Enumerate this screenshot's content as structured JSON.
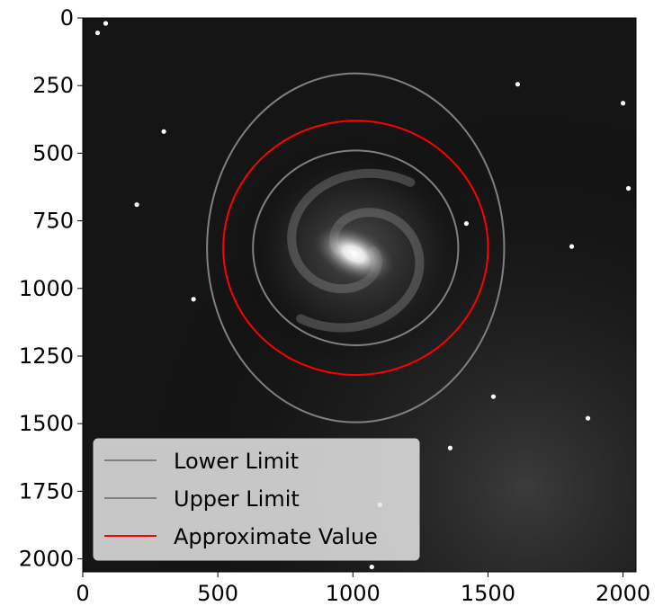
{
  "chart_data": {
    "type": "image",
    "title": "",
    "xlabel": "",
    "ylabel": "",
    "xlim": [
      0,
      2048
    ],
    "ylim": [
      2048,
      0
    ],
    "x_ticks": [
      0,
      500,
      1000,
      1500,
      2000
    ],
    "y_ticks": [
      0,
      250,
      500,
      750,
      1000,
      1250,
      1500,
      1750,
      2000
    ],
    "grid": false,
    "legend_position": "lower-left",
    "background_image": "grayscale-spiral-galaxy-starfield",
    "galaxy_center": {
      "x": 1010,
      "y": 860
    },
    "series": [
      {
        "name": "Lower Limit",
        "color": "#808080",
        "center": {
          "x": 1010,
          "y": 850
        },
        "rx": 380,
        "ry": 360
      },
      {
        "name": "Upper Limit",
        "color": "#808080",
        "center": {
          "x": 1010,
          "y": 850
        },
        "rx": 550,
        "ry": 645
      },
      {
        "name": "Approximate Value",
        "color": "#ff0000",
        "center": {
          "x": 1010,
          "y": 850
        },
        "rx": 490,
        "ry": 470
      }
    ],
    "stars": [
      {
        "x": 55,
        "y": 55
      },
      {
        "x": 85,
        "y": 20
      },
      {
        "x": 300,
        "y": 420
      },
      {
        "x": 1610,
        "y": 245
      },
      {
        "x": 2000,
        "y": 315
      },
      {
        "x": 2020,
        "y": 630
      },
      {
        "x": 1810,
        "y": 845
      },
      {
        "x": 1520,
        "y": 1400
      },
      {
        "x": 1100,
        "y": 1800
      },
      {
        "x": 1070,
        "y": 2030
      },
      {
        "x": 410,
        "y": 1040
      },
      {
        "x": 200,
        "y": 690
      },
      {
        "x": 1360,
        "y": 1590
      },
      {
        "x": 1870,
        "y": 1480
      },
      {
        "x": 1420,
        "y": 760
      }
    ]
  }
}
